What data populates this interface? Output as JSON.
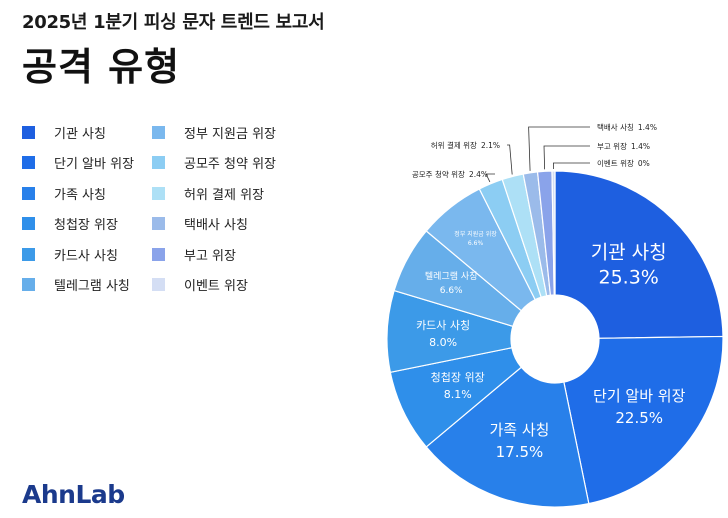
{
  "header": {
    "subtitle": "2025년 1분기 피싱 문자 트렌드 보고서",
    "title": "공격 유형"
  },
  "brand": {
    "logo_text": "AhnLab"
  },
  "chart_data": {
    "type": "pie",
    "variant": "donut",
    "title": "공격 유형",
    "legend_position": "left",
    "categories": [
      "기관 사칭",
      "단기 알바 위장",
      "가족 사칭",
      "청첩장 위장",
      "카드사 사칭",
      "텔레그램 사칭",
      "정부 지원금 위장",
      "공모주 청약 위장",
      "허위 결제 위장",
      "택배사 사칭",
      "부고 위장",
      "이벤트 위장"
    ],
    "values": [
      25.3,
      22.5,
      17.5,
      8.1,
      8.0,
      6.6,
      6.6,
      2.4,
      2.1,
      1.4,
      1.4,
      0
    ],
    "value_labels": [
      "25.3%",
      "22.5%",
      "17.5%",
      "8.1%",
      "8.0%",
      "6.6%",
      "6.6%",
      "2.4%",
      "2.1%",
      "1.4%",
      "1.4%",
      "0%"
    ],
    "colors": [
      "#1e5fe0",
      "#1f6de8",
      "#2880ea",
      "#2f8fea",
      "#3c9ae8",
      "#66aeea",
      "#7ab8ee",
      "#8ccdf3",
      "#ade0f6",
      "#9bbbea",
      "#8aa3ea",
      "#d4def4"
    ]
  }
}
